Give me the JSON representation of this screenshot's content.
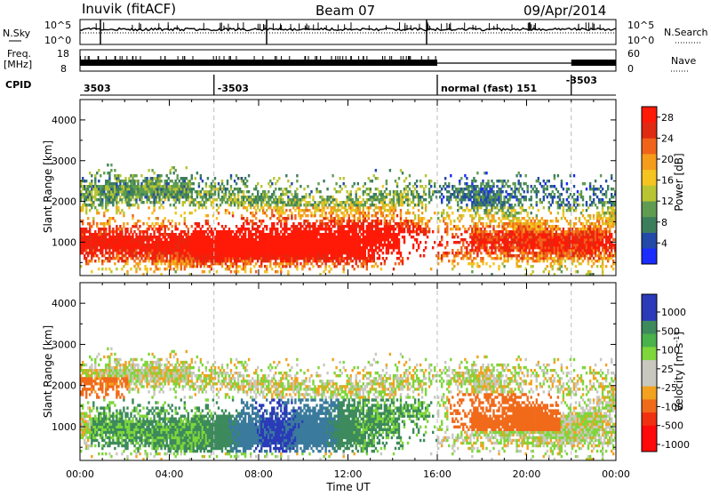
{
  "header": {
    "title": "Inuvik (fitACF)",
    "beam": "Beam 07",
    "date": "09/Apr/2014"
  },
  "strip_labels": {
    "nsky": "N.Sky",
    "nsky_ticks": [
      "10^5",
      "10^0"
    ],
    "nsearch": "N.Search",
    "nsearch_ticks": [
      "10^5",
      "10^0"
    ],
    "freq_top": "Freq.",
    "freq_unit": "[MHz]",
    "freq_ticks": [
      "18",
      "8"
    ],
    "nave": "Nave",
    "nave_ticks": [
      "60",
      "0"
    ],
    "cpid": "CPID"
  },
  "cpid_segments": [
    {
      "label": "3503",
      "start": 0.0
    },
    {
      "label": "-3503",
      "start": 6.0
    },
    {
      "label": "normal (fast) 151",
      "start": 16.0
    },
    {
      "label": "-3503",
      "start": 22.0
    }
  ],
  "colors": {
    "power": [
      "#1a2cff",
      "#234aa8",
      "#3c7e5c",
      "#5f9c52",
      "#b9c432",
      "#f5c421",
      "#f59c1b",
      "#f0641a",
      "#e02a12",
      "#ff1a08"
    ],
    "velocity": [
      "#ff0a0a",
      "#f03010",
      "#f06a1a",
      "#f2a21e",
      "#c8c8c0",
      "#c8c8c0",
      "#7ed63a",
      "#49b24a",
      "#3d8a5c",
      "#3a7a9c",
      "#2a3ab8"
    ]
  },
  "chart_data": [
    {
      "type": "heatmap",
      "name": "Power",
      "xlabel": "Time UT",
      "ylabel": "Slant Range [km]",
      "x_ticks": [
        "00:00",
        "04:00",
        "08:00",
        "12:00",
        "16:00",
        "20:00",
        "00:00"
      ],
      "xlim": [
        0,
        24
      ],
      "ylim": [
        180,
        4500
      ],
      "y_ticks": [
        1000,
        2000,
        3000,
        4000
      ],
      "colorbar": {
        "label": "Power [dB]",
        "ticks": [
          "28",
          "24",
          "20",
          "16",
          "12",
          "8",
          "4"
        ],
        "range": [
          0,
          30
        ]
      },
      "mode_change_lines_hours": [
        6.0,
        16.0,
        22.0
      ]
    },
    {
      "type": "heatmap",
      "name": "Velocity",
      "xlabel": "Time UT",
      "ylabel": "Slant Range [km]",
      "x_ticks": [
        "00:00",
        "04:00",
        "08:00",
        "12:00",
        "16:00",
        "20:00",
        "00:00"
      ],
      "xlim": [
        0,
        24
      ],
      "ylim": [
        180,
        4500
      ],
      "y_ticks": [
        1000,
        2000,
        3000,
        4000
      ],
      "colorbar": {
        "label": "Velocity [m s-1]",
        "label_main": "Velocity [m s",
        "label_exp": "-1",
        "label_end": "]",
        "ticks": [
          "1000",
          "500",
          "100",
          "25",
          "-25",
          "-100",
          "-500",
          "-1000"
        ],
        "range": [
          -1000,
          1000
        ]
      },
      "mode_change_lines_hours": [
        6.0,
        16.0,
        22.0
      ]
    }
  ],
  "time_axis_label": "Time UT"
}
